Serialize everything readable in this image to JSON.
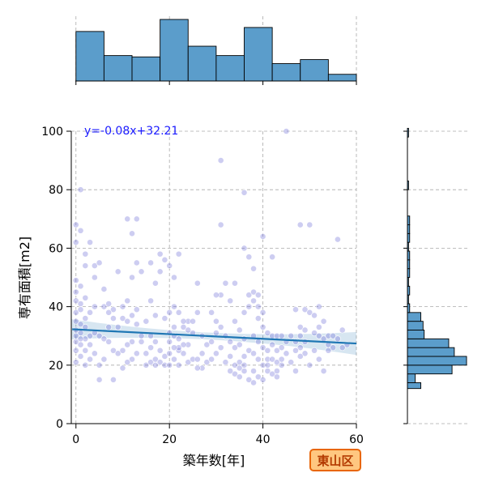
{
  "chart_data": {
    "type": "scatter",
    "xlabel": "築年数[年]",
    "ylabel": "専有面積[m2]",
    "equation_label": "y=-0.08x+32.21",
    "region_label": "東山区",
    "xlim": [
      -1,
      60
    ],
    "ylim": [
      0,
      100
    ],
    "x_ticks": [
      0,
      20,
      40,
      60
    ],
    "y_ticks": [
      0,
      20,
      40,
      60,
      80,
      100
    ],
    "grid": true,
    "regression": {
      "slope": -0.08,
      "intercept": 32.21,
      "x_range": [
        -1,
        60
      ]
    },
    "point_color": "#6f6fd8",
    "line_color": "#1f77b4",
    "hist_color": "#5b9dcb",
    "x_hist": {
      "bin_edges": [
        0,
        6,
        12,
        18,
        24,
        30,
        36,
        42,
        48,
        54,
        60
      ],
      "counts": [
        37,
        19,
        18,
        46,
        26,
        19,
        40,
        13,
        16,
        5
      ]
    },
    "y_hist": {
      "bin_edges": [
        12,
        14,
        17,
        20,
        23,
        26,
        29,
        32,
        35,
        38,
        41,
        44,
        47,
        50,
        53,
        56,
        59,
        62,
        65,
        68,
        71,
        74,
        77,
        80,
        83,
        86,
        89,
        92,
        95,
        98,
        101
      ],
      "counts": [
        12,
        7,
        40,
        53,
        42,
        37,
        15,
        14,
        12,
        2,
        1,
        2,
        1,
        2,
        2,
        2,
        1,
        2,
        2,
        2,
        0,
        0,
        0,
        1,
        0,
        0,
        0,
        0,
        0,
        1
      ]
    },
    "points": [
      [
        1,
        80
      ],
      [
        0,
        68
      ],
      [
        1,
        66
      ],
      [
        0,
        62
      ],
      [
        2,
        58
      ],
      [
        3,
        62
      ],
      [
        2,
        54
      ],
      [
        4,
        54
      ],
      [
        5,
        55
      ],
      [
        0,
        49
      ],
      [
        1,
        47
      ],
      [
        0,
        45
      ],
      [
        2,
        43
      ],
      [
        0,
        42
      ],
      [
        1,
        41
      ],
      [
        0,
        38
      ],
      [
        1,
        39
      ],
      [
        3,
        38
      ],
      [
        2,
        36
      ],
      [
        0,
        35
      ],
      [
        1,
        34
      ],
      [
        2,
        33
      ],
      [
        0,
        32
      ],
      [
        1,
        31
      ],
      [
        3,
        30
      ],
      [
        0,
        30
      ],
      [
        2,
        29
      ],
      [
        4,
        31
      ],
      [
        5,
        30
      ],
      [
        0,
        28
      ],
      [
        1,
        27
      ],
      [
        3,
        27
      ],
      [
        0,
        25
      ],
      [
        2,
        25
      ],
      [
        4,
        24
      ],
      [
        1,
        23
      ],
      [
        3,
        22
      ],
      [
        0,
        21
      ],
      [
        5,
        20
      ],
      [
        2,
        20
      ],
      [
        1,
        29
      ],
      [
        6,
        29
      ],
      [
        7,
        28
      ],
      [
        8,
        25
      ],
      [
        9,
        24
      ],
      [
        6,
        22
      ],
      [
        5,
        15
      ],
      [
        8,
        15
      ],
      [
        7,
        33
      ],
      [
        9,
        33
      ],
      [
        4,
        40
      ],
      [
        6,
        40
      ],
      [
        7,
        41
      ],
      [
        8,
        39
      ],
      [
        6,
        46
      ],
      [
        4,
        50
      ],
      [
        9,
        52
      ],
      [
        7,
        38
      ],
      [
        8,
        36
      ],
      [
        10,
        36
      ],
      [
        11,
        70
      ],
      [
        13,
        70
      ],
      [
        12,
        65
      ],
      [
        13,
        55
      ],
      [
        14,
        52
      ],
      [
        12,
        50
      ],
      [
        11,
        42
      ],
      [
        10,
        40
      ],
      [
        13,
        39
      ],
      [
        12,
        37
      ],
      [
        11,
        35
      ],
      [
        13,
        34
      ],
      [
        14,
        30
      ],
      [
        12,
        28
      ],
      [
        11,
        27
      ],
      [
        10,
        25
      ],
      [
        13,
        24
      ],
      [
        12,
        22
      ],
      [
        11,
        21
      ],
      [
        10,
        19
      ],
      [
        15,
        20
      ],
      [
        16,
        21
      ],
      [
        17,
        22
      ],
      [
        15,
        24
      ],
      [
        16,
        26
      ],
      [
        17,
        28
      ],
      [
        16,
        30
      ],
      [
        14,
        28
      ],
      [
        15,
        35
      ],
      [
        17,
        37
      ],
      [
        16,
        42
      ],
      [
        17,
        48
      ],
      [
        18,
        52
      ],
      [
        18,
        58
      ],
      [
        16,
        55
      ],
      [
        19,
        56
      ],
      [
        18,
        25
      ],
      [
        18,
        21
      ],
      [
        19,
        20
      ],
      [
        17,
        20
      ],
      [
        20,
        20
      ],
      [
        21,
        22
      ],
      [
        22,
        25
      ],
      [
        20,
        28
      ],
      [
        21,
        30
      ],
      [
        22,
        29
      ],
      [
        23,
        33
      ],
      [
        20,
        38
      ],
      [
        21,
        40
      ],
      [
        22,
        38
      ],
      [
        19,
        36
      ],
      [
        23,
        24
      ],
      [
        22,
        20
      ],
      [
        24,
        21
      ],
      [
        25,
        22
      ],
      [
        24,
        27
      ],
      [
        25,
        31
      ],
      [
        24,
        35
      ],
      [
        21,
        50
      ],
      [
        20,
        54
      ],
      [
        22,
        58
      ],
      [
        23,
        35
      ],
      [
        24,
        32
      ],
      [
        20,
        31
      ],
      [
        21,
        33
      ],
      [
        22,
        26
      ],
      [
        23,
        27
      ],
      [
        19,
        23
      ],
      [
        20,
        24
      ],
      [
        21,
        26
      ],
      [
        26,
        48
      ],
      [
        26,
        38
      ],
      [
        25,
        35
      ],
      [
        27,
        30
      ],
      [
        28,
        27
      ],
      [
        27,
        24
      ],
      [
        26,
        22
      ],
      [
        28,
        21
      ],
      [
        27,
        19
      ],
      [
        26,
        19
      ],
      [
        29,
        22
      ],
      [
        30,
        24
      ],
      [
        31,
        26
      ],
      [
        29,
        28
      ],
      [
        30,
        31
      ],
      [
        31,
        33
      ],
      [
        30,
        35
      ],
      [
        29,
        38
      ],
      [
        31,
        44
      ],
      [
        30,
        44
      ],
      [
        31,
        90
      ],
      [
        31,
        68
      ],
      [
        32,
        48
      ],
      [
        33,
        42
      ],
      [
        32,
        30
      ],
      [
        33,
        28
      ],
      [
        34,
        26
      ],
      [
        33,
        23
      ],
      [
        32,
        21
      ],
      [
        34,
        20
      ],
      [
        35,
        19
      ],
      [
        34,
        17
      ],
      [
        33,
        18
      ],
      [
        35,
        16
      ],
      [
        36,
        18
      ],
      [
        35,
        21
      ],
      [
        36,
        23
      ],
      [
        37,
        25
      ],
      [
        35,
        27
      ],
      [
        36,
        29
      ],
      [
        34,
        35
      ],
      [
        35,
        32
      ],
      [
        36,
        38
      ],
      [
        37,
        40
      ],
      [
        34,
        48
      ],
      [
        36,
        60
      ],
      [
        37,
        57
      ],
      [
        38,
        53
      ],
      [
        37,
        44
      ],
      [
        36,
        79
      ],
      [
        38,
        45
      ],
      [
        39,
        44
      ],
      [
        38,
        42
      ],
      [
        39,
        40
      ],
      [
        40,
        38
      ],
      [
        39,
        36
      ],
      [
        40,
        33
      ],
      [
        38,
        30
      ],
      [
        39,
        28
      ],
      [
        40,
        26
      ],
      [
        38,
        24
      ],
      [
        39,
        22
      ],
      [
        40,
        20
      ],
      [
        41,
        22
      ],
      [
        38,
        18
      ],
      [
        39,
        16
      ],
      [
        37,
        15
      ],
      [
        40,
        15
      ],
      [
        38,
        14
      ],
      [
        36,
        20
      ],
      [
        41,
        18
      ],
      [
        42,
        17
      ],
      [
        43,
        18
      ],
      [
        41,
        20
      ],
      [
        42,
        22
      ],
      [
        43,
        21
      ],
      [
        44,
        20
      ],
      [
        41,
        25
      ],
      [
        42,
        27
      ],
      [
        43,
        25
      ],
      [
        44,
        26
      ],
      [
        41,
        31
      ],
      [
        42,
        30
      ],
      [
        40,
        64
      ],
      [
        42,
        57
      ],
      [
        43,
        30
      ],
      [
        44,
        30
      ],
      [
        45,
        28
      ],
      [
        46,
        30
      ],
      [
        45,
        100
      ],
      [
        47,
        39
      ],
      [
        48,
        33
      ],
      [
        49,
        32
      ],
      [
        48,
        30
      ],
      [
        49,
        28
      ],
      [
        47,
        28
      ],
      [
        48,
        26
      ],
      [
        47,
        25
      ],
      [
        49,
        24
      ],
      [
        48,
        23
      ],
      [
        48,
        68
      ],
      [
        50,
        68
      ],
      [
        49,
        39
      ],
      [
        50,
        38
      ],
      [
        51,
        37
      ],
      [
        52,
        33
      ],
      [
        51,
        31
      ],
      [
        52,
        30
      ],
      [
        53,
        29
      ],
      [
        54,
        30
      ],
      [
        52,
        40
      ],
      [
        53,
        35
      ],
      [
        54,
        27
      ],
      [
        52,
        22
      ],
      [
        53,
        18
      ],
      [
        51,
        25
      ],
      [
        56,
        63
      ],
      [
        55,
        30
      ],
      [
        57,
        32
      ],
      [
        58,
        27
      ],
      [
        56,
        29
      ],
      [
        55,
        26
      ],
      [
        54,
        25
      ],
      [
        57,
        26
      ],
      [
        50,
        20
      ],
      [
        47,
        18
      ],
      [
        45,
        24
      ],
      [
        44,
        22
      ],
      [
        46,
        21
      ],
      [
        43,
        16
      ]
    ]
  }
}
